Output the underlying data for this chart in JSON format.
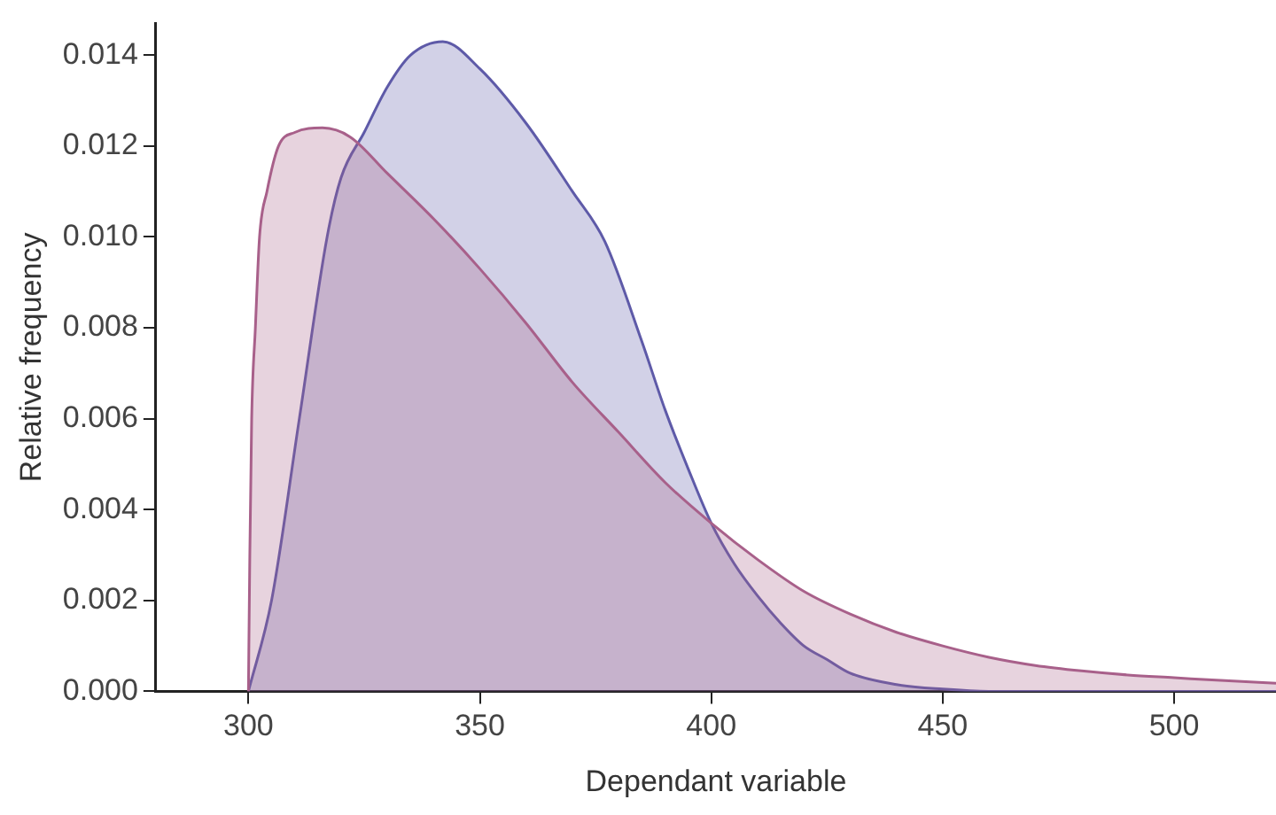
{
  "chart_data": {
    "type": "area",
    "xlabel": "Dependant variable",
    "ylabel": "Relative frequency",
    "xlim": [
      280,
      522
    ],
    "xticks": [
      300,
      350,
      400,
      450,
      500
    ],
    "ylim": [
      0,
      0.0147
    ],
    "yticks": [
      {
        "value": 0,
        "label": "0.000"
      },
      {
        "value": 0.002,
        "label": "0.002"
      },
      {
        "value": 0.004,
        "label": "0.004"
      },
      {
        "value": 0.006,
        "label": "0.006"
      },
      {
        "value": 0.008,
        "label": "0.008"
      },
      {
        "value": 0.01,
        "label": "0.010"
      },
      {
        "value": 0.012,
        "label": "0.012"
      },
      {
        "value": 0.014,
        "label": "0.014"
      }
    ],
    "grid": false,
    "legend": false,
    "series": [
      {
        "color": "#a8608a",
        "x": [
          300,
          300.3,
          300.7,
          301.5,
          302.4,
          304,
          306.5,
          310,
          316,
          322,
          330,
          340,
          350,
          360,
          370,
          380,
          390,
          400,
          410,
          420,
          430,
          440,
          450,
          460,
          470,
          480,
          490,
          500,
          510,
          522
        ],
        "values": [
          0,
          0.003,
          0.006,
          0.008,
          0.01,
          0.011,
          0.012,
          0.0123,
          0.0124,
          0.0122,
          0.0114,
          0.0104,
          0.0093,
          0.0081,
          0.0068,
          0.0057,
          0.0046,
          0.0037,
          0.0029,
          0.0022,
          0.0017,
          0.0013,
          0.001,
          0.00075,
          0.00057,
          0.00045,
          0.00036,
          0.0003,
          0.00024,
          0.00018
        ]
      },
      {
        "color": "#5e5aa8",
        "x": [
          300,
          305,
          311,
          317,
          320,
          325,
          330,
          335,
          342,
          350,
          360,
          370,
          377,
          385,
          390,
          395,
          400,
          405,
          410,
          415,
          420,
          425,
          430,
          440,
          450,
          460,
          480,
          500,
          522
        ],
        "values": [
          0,
          0.002,
          0.006,
          0.01,
          0.0113,
          0.0123,
          0.0133,
          0.014,
          0.0143,
          0.0137,
          0.0125,
          0.011,
          0.0099,
          0.0077,
          0.0062,
          0.0049,
          0.0037,
          0.0028,
          0.0021,
          0.0015,
          0.001,
          0.0007,
          0.0004,
          0.00015,
          5e-05,
          0,
          0,
          0,
          0
        ]
      }
    ]
  }
}
